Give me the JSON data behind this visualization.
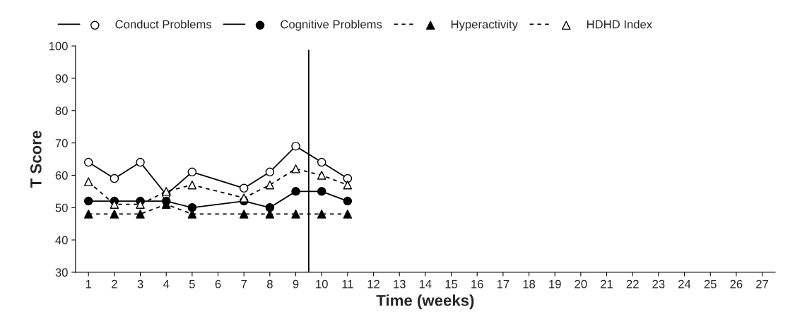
{
  "chart_data": {
    "type": "line",
    "xlabel": "Time (weeks)",
    "ylabel": "T Score",
    "xlim": [
      0.5,
      27.5
    ],
    "xticks": [
      1,
      2,
      3,
      4,
      5,
      6,
      7,
      8,
      9,
      10,
      11,
      12,
      13,
      14,
      15,
      16,
      17,
      18,
      19,
      20,
      21,
      22,
      23,
      24,
      25,
      26,
      27
    ],
    "ylim": [
      30,
      100
    ],
    "yticks": [
      30,
      40,
      50,
      60,
      70,
      80,
      90,
      100
    ],
    "grid": false,
    "legend": "top",
    "ref_lines": [
      {
        "axis": "x",
        "value": 9.5,
        "color": "#000000",
        "line_style": "solid"
      }
    ],
    "series": [
      {
        "name": "Conduct Problems",
        "color": "#000000",
        "marker": "circle",
        "colors": [
          "#ffffff",
          "#ffffff",
          "#ffffff",
          "#ffffff",
          "#ffffff",
          "#ffffff",
          "#ffffff",
          "#ffffff",
          "#ffffff",
          "#ffffff"
        ],
        "line_style": "solid",
        "x": [
          1,
          2,
          3,
          4,
          5,
          7,
          8,
          9,
          10,
          11
        ],
        "values": [
          64,
          59,
          64,
          54,
          61,
          56,
          61,
          69,
          64,
          59
        ]
      },
      {
        "name": "Cognitive Problems",
        "color": "#000000",
        "marker": "circle",
        "line_style": "solid",
        "x": [
          1,
          2,
          3,
          4,
          5,
          7,
          8,
          9,
          10,
          11
        ],
        "values": [
          52,
          52,
          52,
          52,
          50,
          52,
          50,
          55,
          55,
          52
        ]
      },
      {
        "name": "Hyperactivity",
        "color": "#000000",
        "marker": "triangle",
        "line_style": "dashed",
        "x": [
          1,
          2,
          3,
          4,
          5,
          7,
          8,
          9,
          10,
          11
        ],
        "values": [
          48,
          48,
          48,
          51,
          48,
          48,
          48,
          48,
          48,
          48
        ]
      },
      {
        "name": "HDHD Index",
        "color": "#000000",
        "marker": "triangle",
        "colors": [
          "#ffffff",
          "#ffffff",
          "#ffffff",
          "#ffffff",
          "#ffffff",
          "#ffffff",
          "#ffffff",
          "#ffffff",
          "#ffffff",
          "#ffffff"
        ],
        "line_style": "dashed",
        "x": [
          1,
          2,
          3,
          4,
          5,
          7,
          8,
          9,
          10,
          11
        ],
        "values": [
          58,
          51,
          51,
          55,
          57,
          53,
          57,
          62,
          60,
          57
        ]
      }
    ]
  }
}
